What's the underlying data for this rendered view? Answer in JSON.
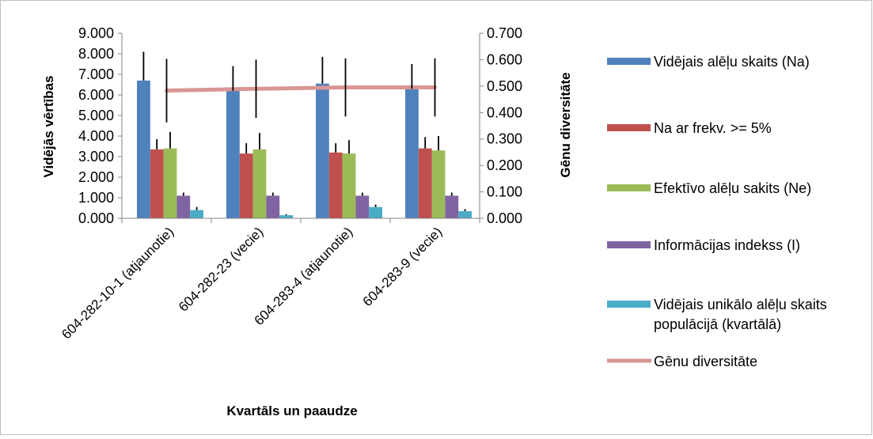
{
  "chart_data": {
    "type": "bar",
    "categories": [
      "604-282-10-1 (atjaunotie)",
      "604-282-23 (vecie)",
      "604-283-4 (atjaunotie)",
      "604-283-9 (vecie)"
    ],
    "xlabel": "Kvartāls un paaudze",
    "ylabel": "Vidējās vērtības",
    "y2label": "Gēnu diversitāte",
    "ylim": [
      0,
      9
    ],
    "y2lim": [
      0,
      0.7
    ],
    "yticks": [
      "0.000",
      "1.000",
      "2.000",
      "3.000",
      "4.000",
      "5.000",
      "6.000",
      "7.000",
      "8.000",
      "9.000"
    ],
    "y2ticks": [
      "0.000",
      "0.100",
      "0.200",
      "0.300",
      "0.400",
      "0.500",
      "0.600",
      "0.700"
    ],
    "legend_position": "right",
    "grid": false,
    "series": [
      {
        "name": "Vidējais alēļu skaits (Na)",
        "color": "#4f81bd",
        "values": [
          6.7,
          6.2,
          6.55,
          6.3
        ],
        "errors": [
          1.4,
          1.2,
          1.3,
          1.2
        ]
      },
      {
        "name": "Na ar frekv. >= 5%",
        "color": "#c0504d",
        "values": [
          3.35,
          3.15,
          3.2,
          3.4
        ],
        "errors": [
          0.5,
          0.5,
          0.45,
          0.55
        ]
      },
      {
        "name": "Efektīvo alēļu sakits (Ne)",
        "color": "#9bbb59",
        "values": [
          3.4,
          3.35,
          3.15,
          3.3
        ],
        "errors": [
          0.8,
          0.8,
          0.65,
          0.7
        ]
      },
      {
        "name": "Informācijas indekss (I)",
        "color": "#8064a2",
        "values": [
          1.1,
          1.1,
          1.1,
          1.1
        ],
        "errors": [
          0.15,
          0.15,
          0.15,
          0.15
        ]
      },
      {
        "name": "Vidējais unikālo alēļu skaits populācijā (kvartālā)",
        "color": "#4bacc6",
        "values": [
          0.4,
          0.15,
          0.55,
          0.35
        ],
        "errors": [
          0.15,
          0.05,
          0.12,
          0.1
        ]
      },
      {
        "name": "Gēnu diversitāte",
        "color": "#d99694",
        "type": "line",
        "axis": "secondary",
        "values": [
          0.483,
          0.49,
          0.495,
          0.495
        ],
        "errors": [
          0.12,
          0.11,
          0.11,
          0.11
        ]
      }
    ]
  }
}
